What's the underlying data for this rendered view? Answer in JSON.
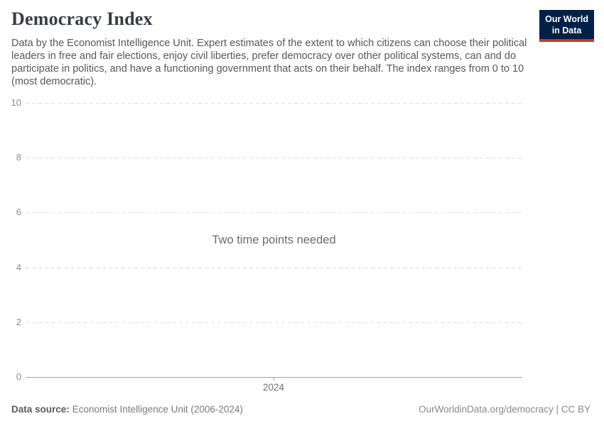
{
  "header": {
    "title": "Democracy Index",
    "subtitle": "Data by the Economist Intelligence Unit. Expert estimates of the extent to which citizens can choose their political leaders in free and fair elections, enjoy civil liberties, prefer democracy over other political systems, can and do participate in politics, and have a functioning government that acts on their behalf. The index ranges from 0 to 10 (most democratic).",
    "logo": {
      "line1": "Our World",
      "line2": "in Data"
    }
  },
  "chart_data": {
    "type": "line",
    "title": "Democracy Index",
    "empty_message": "Two time points needed",
    "series": [],
    "categories": [],
    "y_ticks": [
      0,
      2,
      4,
      6,
      8,
      10
    ],
    "x_ticks": [
      "2024"
    ],
    "ylim": [
      0,
      10
    ],
    "xlabel": "",
    "ylabel": "",
    "grid": true,
    "legend": false
  },
  "footer": {
    "source_label": "Data source:",
    "source_value": "Economist Intelligence Unit (2006-2024)",
    "attribution": "OurWorldinData.org/democracy | CC BY"
  },
  "colors": {
    "brand_navy": "#002147",
    "brand_red": "#cf342b",
    "title_text": "#383d43",
    "body_text": "#575757",
    "axis_text": "#8b8b8b",
    "gridline": "#e0e0e0",
    "axis_line": "#a3a3a3",
    "empty_message_text": "#6b6b6b"
  }
}
